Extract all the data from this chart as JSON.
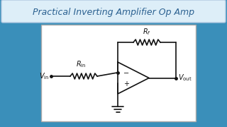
{
  "title": "Practical Inverting Amplifier Op Amp",
  "title_color": "#2a6090",
  "bg_color_top": "#2a6090",
  "bg_color_bot": "#4aabcc",
  "panel_bg": "white",
  "circuit_color": "#111111",
  "title_box_bg": "#e8f0f8",
  "title_box_edge": "#b0c8e0"
}
